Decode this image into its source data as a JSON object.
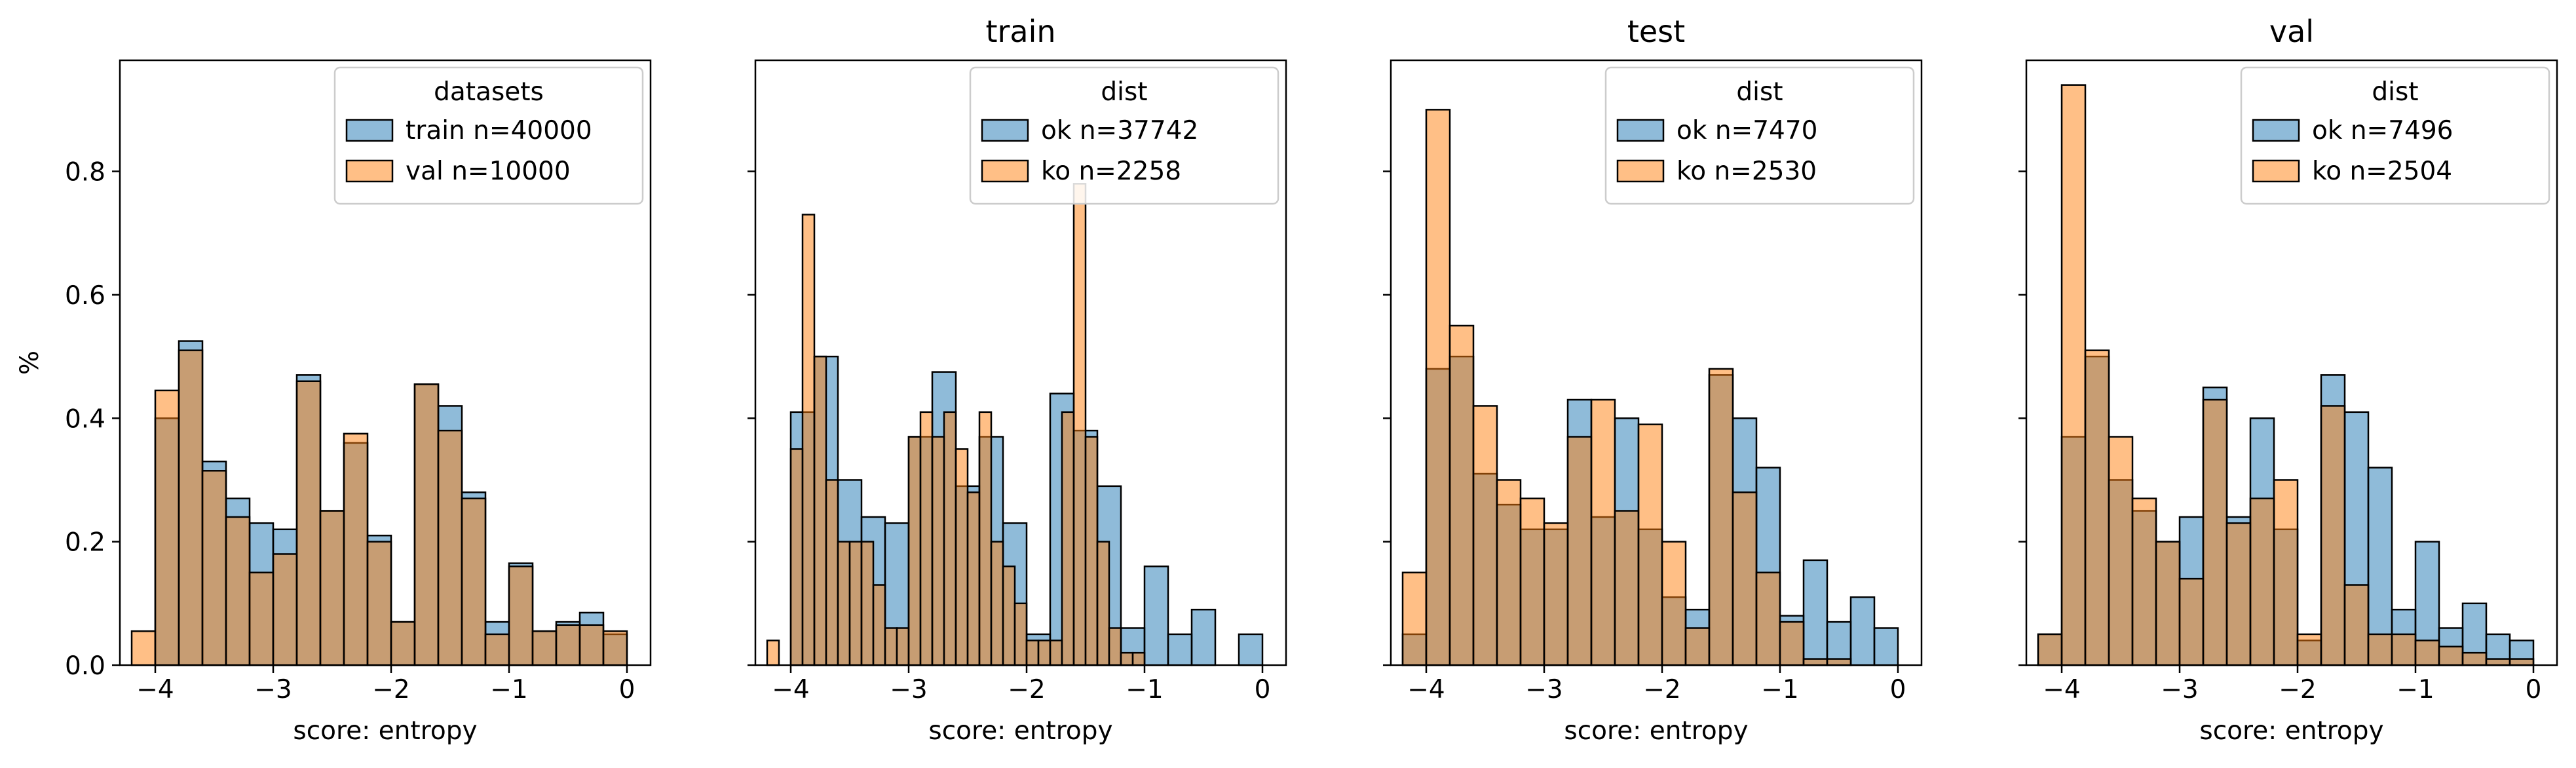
{
  "colors": {
    "series_a": "#1f77b4",
    "series_b": "#ff7f0e",
    "overlap": "#a97d5a",
    "edge": "#000000"
  },
  "chart_data": [
    {
      "type": "histogram",
      "title": "",
      "xlabel": "score: entropy",
      "ylabel": "%",
      "xlim": [
        -4.3,
        0.2
      ],
      "ylim": [
        0,
        0.98
      ],
      "xticks": [
        -4,
        -3,
        -2,
        -1,
        0
      ],
      "yticks": [
        0.0,
        0.2,
        0.4,
        0.6,
        0.8
      ],
      "show_yticklabels": true,
      "legend": {
        "title": "datasets",
        "position": "top-right",
        "entries": [
          "train n=40000",
          "val n=10000"
        ]
      },
      "series": [
        {
          "name": "train n=40000",
          "bins": [
            [
              -4.0,
              -3.8
            ],
            [
              -3.8,
              -3.6
            ],
            [
              -3.6,
              -3.4
            ],
            [
              -3.4,
              -3.2
            ],
            [
              -3.2,
              -3.0
            ],
            [
              -3.0,
              -2.8
            ],
            [
              -2.8,
              -2.6
            ],
            [
              -2.6,
              -2.4
            ],
            [
              -2.4,
              -2.2
            ],
            [
              -2.2,
              -2.0
            ],
            [
              -2.0,
              -1.8
            ],
            [
              -1.8,
              -1.6
            ],
            [
              -1.6,
              -1.4
            ],
            [
              -1.4,
              -1.2
            ],
            [
              -1.2,
              -1.0
            ],
            [
              -1.0,
              -0.8
            ],
            [
              -0.8,
              -0.6
            ],
            [
              -0.6,
              -0.4
            ],
            [
              -0.4,
              -0.2
            ],
            [
              -0.2,
              0.0
            ]
          ],
          "values": [
            0.4,
            0.525,
            0.33,
            0.27,
            0.23,
            0.22,
            0.47,
            0.25,
            0.36,
            0.21,
            0.07,
            0.455,
            0.42,
            0.28,
            0.07,
            0.165,
            0.055,
            0.07,
            0.085,
            0.05
          ]
        },
        {
          "name": "val n=10000",
          "bins": [
            [
              -4.2,
              -4.0
            ],
            [
              -4.0,
              -3.8
            ],
            [
              -3.8,
              -3.6
            ],
            [
              -3.6,
              -3.4
            ],
            [
              -3.4,
              -3.2
            ],
            [
              -3.2,
              -3.0
            ],
            [
              -3.0,
              -2.8
            ],
            [
              -2.8,
              -2.6
            ],
            [
              -2.6,
              -2.4
            ],
            [
              -2.4,
              -2.2
            ],
            [
              -2.2,
              -2.0
            ],
            [
              -2.0,
              -1.8
            ],
            [
              -1.8,
              -1.6
            ],
            [
              -1.6,
              -1.4
            ],
            [
              -1.4,
              -1.2
            ],
            [
              -1.2,
              -1.0
            ],
            [
              -1.0,
              -0.8
            ],
            [
              -0.8,
              -0.6
            ],
            [
              -0.6,
              -0.4
            ],
            [
              -0.4,
              -0.2
            ],
            [
              -0.2,
              0.0
            ]
          ],
          "values": [
            0.055,
            0.445,
            0.51,
            0.315,
            0.24,
            0.15,
            0.18,
            0.46,
            0.25,
            0.375,
            0.2,
            0.07,
            0.455,
            0.38,
            0.27,
            0.05,
            0.16,
            0.055,
            0.065,
            0.065,
            0.055
          ]
        }
      ]
    },
    {
      "type": "histogram",
      "title": "train",
      "xlabel": "score: entropy",
      "ylabel": "",
      "xlim": [
        -4.3,
        0.2
      ],
      "ylim": [
        0,
        0.98
      ],
      "xticks": [
        -4,
        -3,
        -2,
        -1,
        0
      ],
      "yticks": [
        0.0,
        0.2,
        0.4,
        0.6,
        0.8
      ],
      "show_yticklabels": false,
      "legend": {
        "title": "dist",
        "position": "top-right",
        "entries": [
          "ok n=37742",
          "ko n=2258"
        ]
      },
      "series": [
        {
          "name": "ok n=37742",
          "bins": [
            [
              -4.0,
              -3.8
            ],
            [
              -3.8,
              -3.6
            ],
            [
              -3.6,
              -3.4
            ],
            [
              -3.4,
              -3.2
            ],
            [
              -3.2,
              -3.0
            ],
            [
              -3.0,
              -2.8
            ],
            [
              -2.8,
              -2.6
            ],
            [
              -2.6,
              -2.4
            ],
            [
              -2.4,
              -2.2
            ],
            [
              -2.2,
              -2.0
            ],
            [
              -2.0,
              -1.8
            ],
            [
              -1.8,
              -1.6
            ],
            [
              -1.6,
              -1.4
            ],
            [
              -1.4,
              -1.2
            ],
            [
              -1.2,
              -1.0
            ],
            [
              -1.0,
              -0.8
            ],
            [
              -0.8,
              -0.6
            ],
            [
              -0.6,
              -0.4
            ],
            [
              -0.4,
              -0.2
            ],
            [
              -0.2,
              0.0
            ]
          ],
          "values": [
            0.41,
            0.5,
            0.3,
            0.24,
            0.23,
            0.37,
            0.475,
            0.29,
            0.37,
            0.23,
            0.05,
            0.44,
            0.38,
            0.29,
            0.06,
            0.16,
            0.05,
            0.09,
            0.0,
            0.05
          ]
        },
        {
          "name": "ko n=2258",
          "bins": [
            [
              -4.2,
              -4.1
            ],
            [
              -4.0,
              -3.9
            ],
            [
              -3.9,
              -3.8
            ],
            [
              -3.8,
              -3.7
            ],
            [
              -3.7,
              -3.6
            ],
            [
              -3.6,
              -3.5
            ],
            [
              -3.5,
              -3.4
            ],
            [
              -3.4,
              -3.3
            ],
            [
              -3.3,
              -3.2
            ],
            [
              -3.2,
              -3.1
            ],
            [
              -3.1,
              -3.0
            ],
            [
              -3.0,
              -2.9
            ],
            [
              -2.9,
              -2.8
            ],
            [
              -2.8,
              -2.7
            ],
            [
              -2.7,
              -2.6
            ],
            [
              -2.6,
              -2.5
            ],
            [
              -2.5,
              -2.4
            ],
            [
              -2.4,
              -2.3
            ],
            [
              -2.3,
              -2.2
            ],
            [
              -2.2,
              -2.1
            ],
            [
              -2.1,
              -2.0
            ],
            [
              -2.0,
              -1.9
            ],
            [
              -1.9,
              -1.8
            ],
            [
              -1.8,
              -1.7
            ],
            [
              -1.7,
              -1.6
            ],
            [
              -1.6,
              -1.5
            ],
            [
              -1.5,
              -1.4
            ],
            [
              -1.4,
              -1.3
            ],
            [
              -1.3,
              -1.2
            ],
            [
              -1.2,
              -1.1
            ],
            [
              -1.1,
              -1.0
            ]
          ],
          "values": [
            0.04,
            0.35,
            0.73,
            0.5,
            0.3,
            0.2,
            0.2,
            0.2,
            0.13,
            0.06,
            0.06,
            0.37,
            0.41,
            0.37,
            0.41,
            0.35,
            0.28,
            0.41,
            0.2,
            0.16,
            0.1,
            0.04,
            0.04,
            0.04,
            0.41,
            0.78,
            0.37,
            0.2,
            0.06,
            0.02,
            0.02
          ]
        }
      ]
    },
    {
      "type": "histogram",
      "title": "test",
      "xlabel": "score: entropy",
      "ylabel": "",
      "xlim": [
        -4.3,
        0.2
      ],
      "ylim": [
        0,
        0.98
      ],
      "xticks": [
        -4,
        -3,
        -2,
        -1,
        0
      ],
      "yticks": [
        0.0,
        0.2,
        0.4,
        0.6,
        0.8
      ],
      "show_yticklabels": false,
      "legend": {
        "title": "dist",
        "position": "top-right",
        "entries": [
          "ok n=7470",
          "ko n=2530"
        ]
      },
      "series": [
        {
          "name": "ok n=7470",
          "bins": [
            [
              -4.2,
              -4.0
            ],
            [
              -4.0,
              -3.8
            ],
            [
              -3.8,
              -3.6
            ],
            [
              -3.6,
              -3.4
            ],
            [
              -3.4,
              -3.2
            ],
            [
              -3.2,
              -3.0
            ],
            [
              -3.0,
              -2.8
            ],
            [
              -2.8,
              -2.6
            ],
            [
              -2.6,
              -2.4
            ],
            [
              -2.4,
              -2.2
            ],
            [
              -2.2,
              -2.0
            ],
            [
              -2.0,
              -1.8
            ],
            [
              -1.8,
              -1.6
            ],
            [
              -1.6,
              -1.4
            ],
            [
              -1.4,
              -1.2
            ],
            [
              -1.2,
              -1.0
            ],
            [
              -1.0,
              -0.8
            ],
            [
              -0.8,
              -0.6
            ],
            [
              -0.6,
              -0.4
            ],
            [
              -0.4,
              -0.2
            ],
            [
              -0.2,
              0.0
            ]
          ],
          "values": [
            0.05,
            0.48,
            0.5,
            0.31,
            0.26,
            0.22,
            0.22,
            0.43,
            0.24,
            0.4,
            0.22,
            0.11,
            0.09,
            0.47,
            0.4,
            0.32,
            0.08,
            0.17,
            0.07,
            0.11,
            0.06
          ]
        },
        {
          "name": "ko n=2530",
          "bins": [
            [
              -4.2,
              -4.0
            ],
            [
              -4.0,
              -3.8
            ],
            [
              -3.8,
              -3.6
            ],
            [
              -3.6,
              -3.4
            ],
            [
              -3.4,
              -3.2
            ],
            [
              -3.2,
              -3.0
            ],
            [
              -3.0,
              -2.8
            ],
            [
              -2.8,
              -2.6
            ],
            [
              -2.6,
              -2.4
            ],
            [
              -2.4,
              -2.2
            ],
            [
              -2.2,
              -2.0
            ],
            [
              -2.0,
              -1.8
            ],
            [
              -1.8,
              -1.6
            ],
            [
              -1.6,
              -1.4
            ],
            [
              -1.4,
              -1.2
            ],
            [
              -1.2,
              -1.0
            ],
            [
              -1.0,
              -0.8
            ],
            [
              -0.8,
              -0.6
            ],
            [
              -0.6,
              -0.4
            ],
            [
              -0.4,
              -0.2
            ],
            [
              -0.2,
              0.0
            ]
          ],
          "values": [
            0.15,
            0.9,
            0.55,
            0.42,
            0.3,
            0.27,
            0.23,
            0.37,
            0.43,
            0.25,
            0.39,
            0.2,
            0.06,
            0.48,
            0.28,
            0.15,
            0.07,
            0.01,
            0.01,
            0.0,
            0.0
          ]
        }
      ]
    },
    {
      "type": "histogram",
      "title": "val",
      "xlabel": "score: entropy",
      "ylabel": "",
      "xlim": [
        -4.3,
        0.2
      ],
      "ylim": [
        0,
        0.98
      ],
      "xticks": [
        -4,
        -3,
        -2,
        -1,
        0
      ],
      "yticks": [
        0.0,
        0.2,
        0.4,
        0.6,
        0.8
      ],
      "show_yticklabels": false,
      "legend": {
        "title": "dist",
        "position": "top-right",
        "entries": [
          "ok n=7496",
          "ko n=2504"
        ]
      },
      "series": [
        {
          "name": "ok n=7496",
          "bins": [
            [
              -4.2,
              -4.0
            ],
            [
              -4.0,
              -3.8
            ],
            [
              -3.8,
              -3.6
            ],
            [
              -3.6,
              -3.4
            ],
            [
              -3.4,
              -3.2
            ],
            [
              -3.2,
              -3.0
            ],
            [
              -3.0,
              -2.8
            ],
            [
              -2.8,
              -2.6
            ],
            [
              -2.6,
              -2.4
            ],
            [
              -2.4,
              -2.2
            ],
            [
              -2.2,
              -2.0
            ],
            [
              -2.0,
              -1.8
            ],
            [
              -1.8,
              -1.6
            ],
            [
              -1.6,
              -1.4
            ],
            [
              -1.4,
              -1.2
            ],
            [
              -1.2,
              -1.0
            ],
            [
              -1.0,
              -0.8
            ],
            [
              -0.8,
              -0.6
            ],
            [
              -0.6,
              -0.4
            ],
            [
              -0.4,
              -0.2
            ],
            [
              -0.2,
              0.0
            ]
          ],
          "values": [
            0.05,
            0.37,
            0.5,
            0.3,
            0.25,
            0.2,
            0.24,
            0.45,
            0.24,
            0.4,
            0.22,
            0.04,
            0.47,
            0.41,
            0.32,
            0.09,
            0.2,
            0.06,
            0.1,
            0.05,
            0.04
          ]
        },
        {
          "name": "ko n=2504",
          "bins": [
            [
              -4.2,
              -4.0
            ],
            [
              -4.0,
              -3.8
            ],
            [
              -3.8,
              -3.6
            ],
            [
              -3.6,
              -3.4
            ],
            [
              -3.4,
              -3.2
            ],
            [
              -3.2,
              -3.0
            ],
            [
              -3.0,
              -2.8
            ],
            [
              -2.8,
              -2.6
            ],
            [
              -2.6,
              -2.4
            ],
            [
              -2.4,
              -2.2
            ],
            [
              -2.2,
              -2.0
            ],
            [
              -2.0,
              -1.8
            ],
            [
              -1.8,
              -1.6
            ],
            [
              -1.6,
              -1.4
            ],
            [
              -1.4,
              -1.2
            ],
            [
              -1.2,
              -1.0
            ],
            [
              -1.0,
              -0.8
            ],
            [
              -0.8,
              -0.6
            ],
            [
              -0.6,
              -0.4
            ],
            [
              -0.4,
              -0.2
            ],
            [
              -0.2,
              0.0
            ]
          ],
          "values": [
            0.05,
            0.94,
            0.51,
            0.37,
            0.27,
            0.2,
            0.14,
            0.43,
            0.23,
            0.27,
            0.3,
            0.05,
            0.42,
            0.13,
            0.05,
            0.05,
            0.04,
            0.03,
            0.02,
            0.01,
            0.01
          ]
        }
      ]
    }
  ]
}
